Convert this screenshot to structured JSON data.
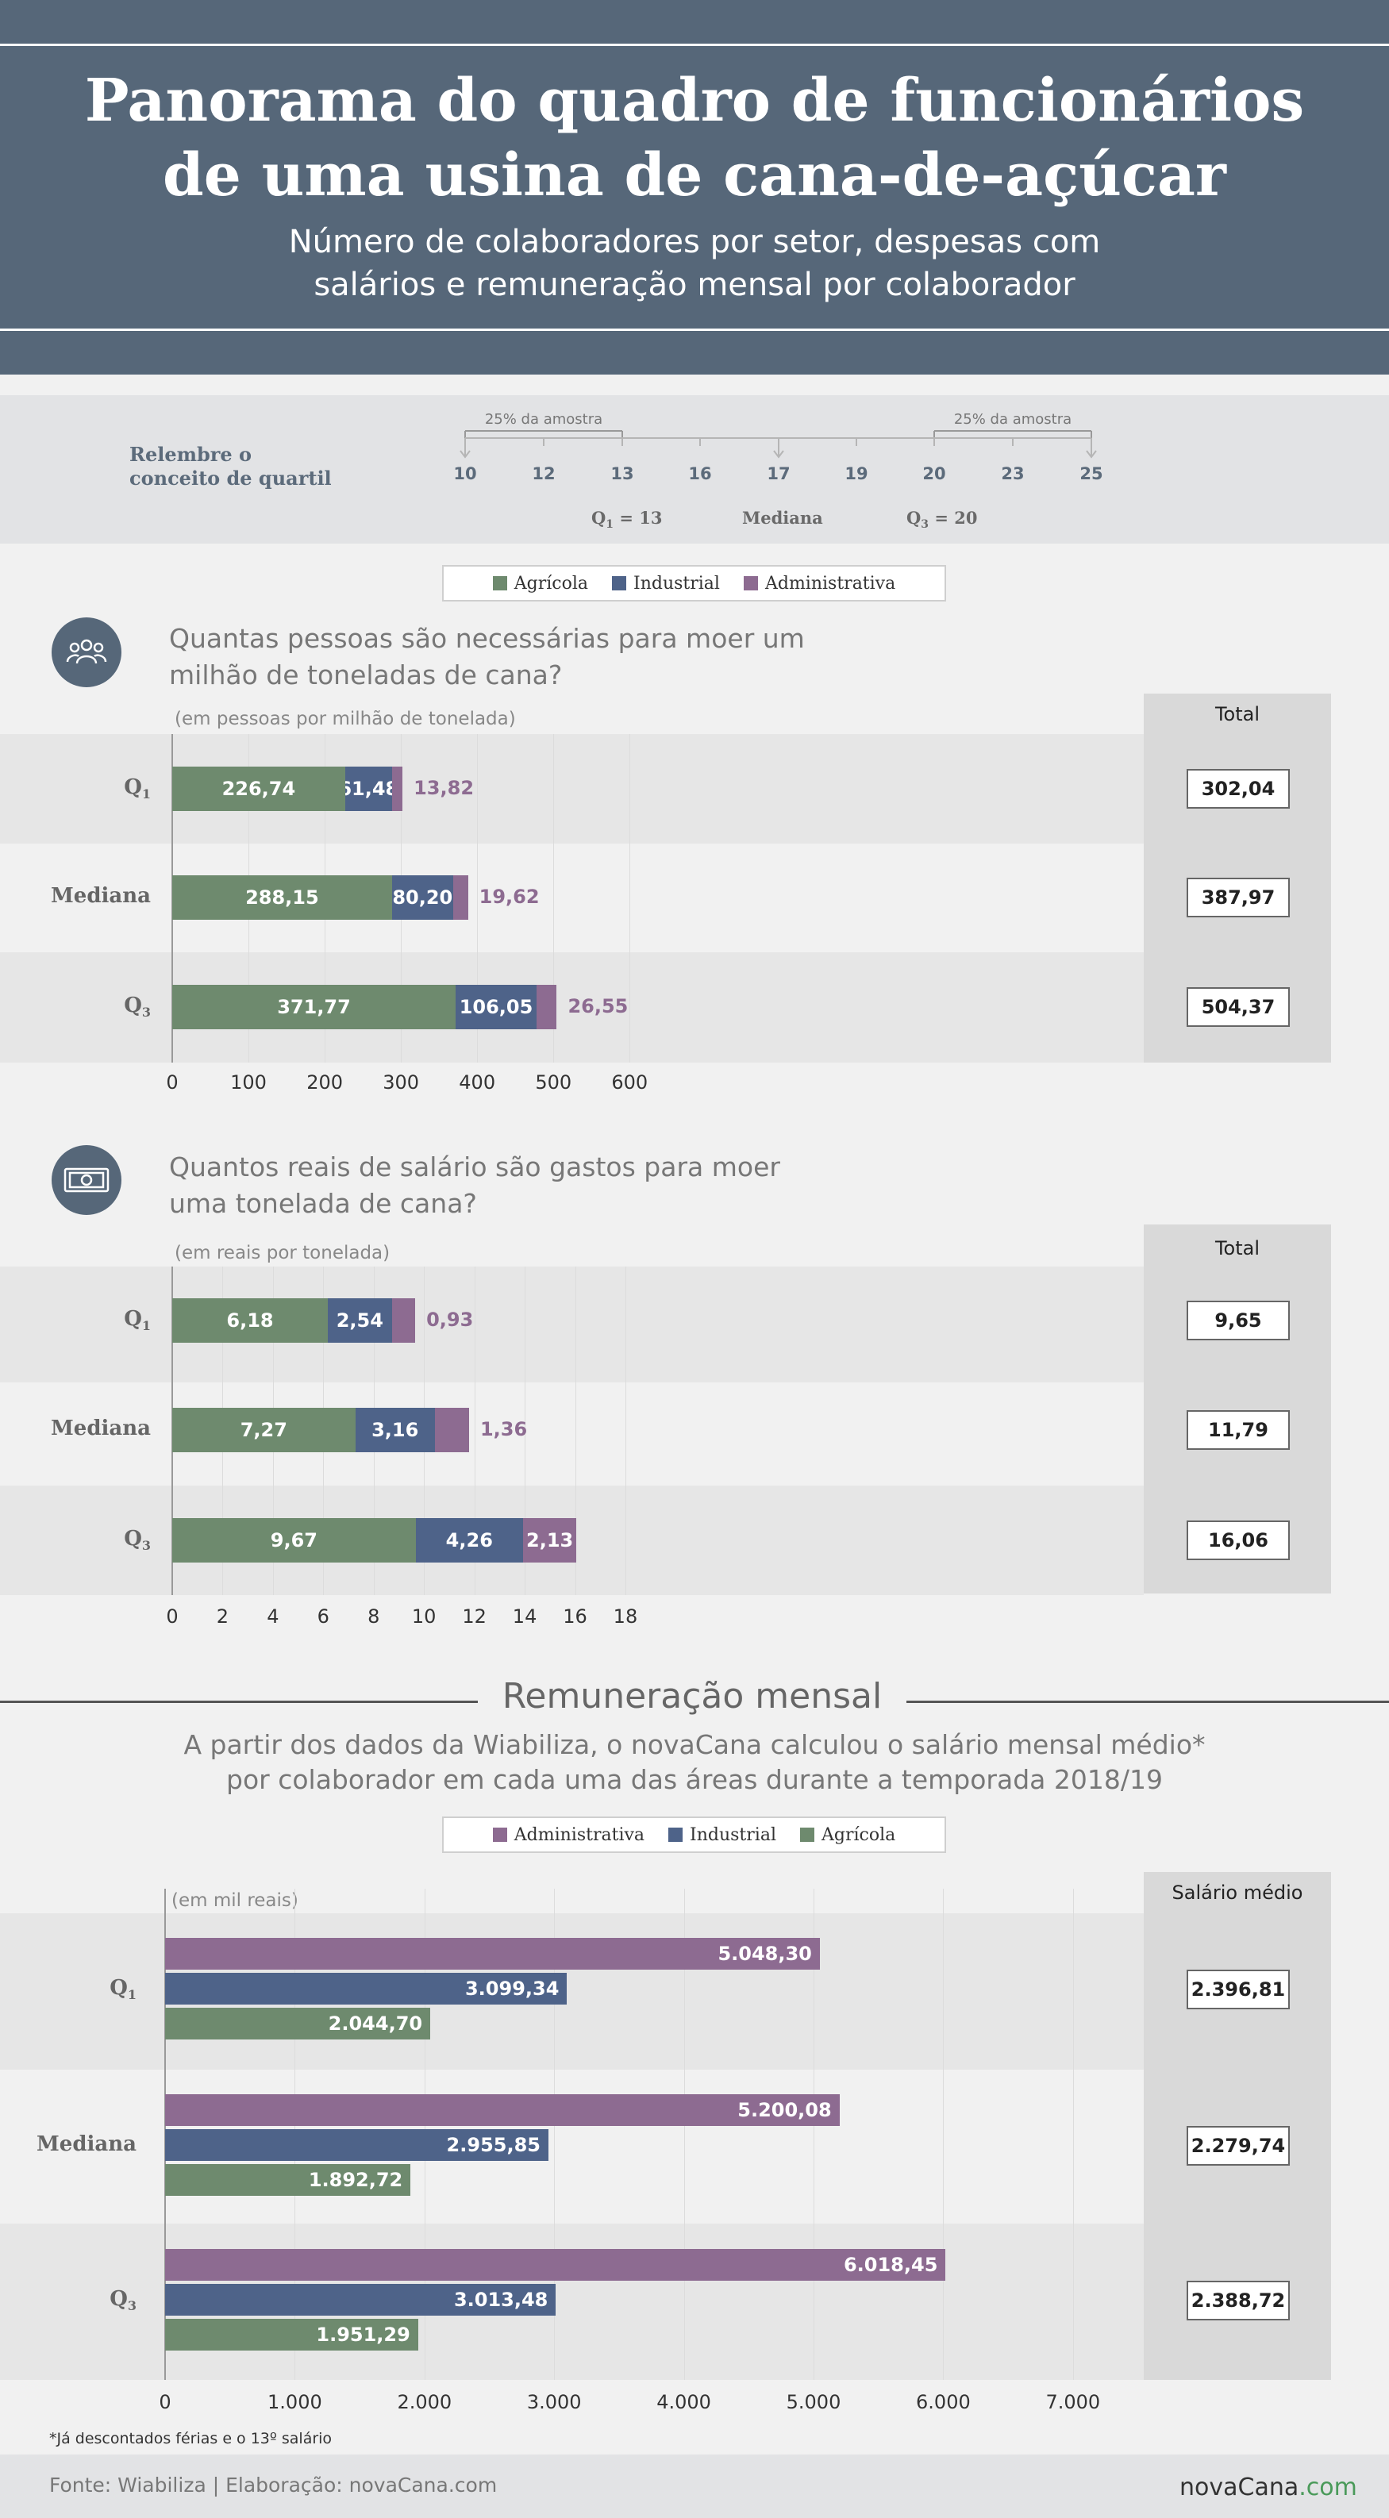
{
  "header": {
    "title_line1": "Panorama do quadro de funcionários",
    "title_line2": "de uma usina de cana-de-açúcar",
    "subtitle_line1": "Número de colaboradores por setor, despesas com",
    "subtitle_line2": "salários e remuneração mensal por colaborador"
  },
  "quartile_explainer": {
    "label_line1": "Relembre o",
    "label_line2": "conceito de quartil",
    "numbers": [
      "10",
      "12",
      "13",
      "16",
      "17",
      "19",
      "20",
      "23",
      "25"
    ],
    "bracket_left": "25% da amostra",
    "bracket_right": "25% da amostra",
    "q1_label": "Q",
    "q1_sub": "1",
    "q1_value": " = 13",
    "median_label": "Mediana",
    "q3_label": "Q",
    "q3_sub": "3",
    "q3_value": " = 20"
  },
  "legend_top": {
    "items": [
      {
        "label": "Agrícola",
        "color": "#6e8a6e"
      },
      {
        "label": "Industrial",
        "color": "#4e6389"
      },
      {
        "label": "Administrativa",
        "color": "#8d6b91"
      }
    ]
  },
  "colors": {
    "agricola": "#6e8a6e",
    "industrial": "#4e6389",
    "administrativa": "#8d6b91",
    "header_bg": "#566779"
  },
  "section1": {
    "title_line1": "Quantas pessoas são necessárias para moer um",
    "title_line2": "milhão de toneladas de cana?",
    "unit": "(em pessoas por milhão de tonelada)",
    "total_header": "Total",
    "icon": "people-icon"
  },
  "section2": {
    "title_line1": "Quantos reais de salário são gastos para moer",
    "title_line2": "uma tonelada de cana?",
    "unit": "(em reais por tonelada)",
    "total_header": "Total",
    "icon": "money-icon"
  },
  "section3": {
    "title": "Remuneração mensal",
    "desc_line1": "A partir dos dados da Wiabiliza, o novaCana calculou o salário mensal médio*",
    "desc_line2": "por colaborador em cada uma das áreas durante a temporada 2018/19",
    "unit": "(em mil reais)",
    "total_header": "Salário médio",
    "footnote": "*Já descontados férias e o 13º salário"
  },
  "legend_bottom": {
    "items": [
      {
        "label": "Administrativa",
        "color": "#8d6b91"
      },
      {
        "label": "Industrial",
        "color": "#4e6389"
      },
      {
        "label": "Agrícola",
        "color": "#6e8a6e"
      }
    ]
  },
  "chart_data": [
    {
      "type": "bar",
      "stacked": true,
      "orientation": "horizontal",
      "title": "Quantas pessoas são necessárias para moer um milhão de toneladas de cana?",
      "unit": "(em pessoas por milhão de tonelada)",
      "categories": [
        "Q1",
        "Mediana",
        "Q3"
      ],
      "series": [
        {
          "name": "Agrícola",
          "values": [
            226.74,
            288.15,
            371.77
          ],
          "labels": [
            "226,74",
            "288,15",
            "371,77"
          ]
        },
        {
          "name": "Industrial",
          "values": [
            61.48,
            80.2,
            106.05
          ],
          "labels": [
            "61,48",
            "80,20",
            "106,05"
          ]
        },
        {
          "name": "Administrativa",
          "values": [
            13.82,
            19.62,
            26.55
          ],
          "labels": [
            "13,82",
            "19,62",
            "26,55"
          ]
        }
      ],
      "totals": [
        "302,04",
        "387,97",
        "504,37"
      ],
      "xlim": [
        0,
        600
      ],
      "ticks": [
        "0",
        "100",
        "200",
        "300",
        "400",
        "500",
        "600"
      ],
      "tick_values": [
        0,
        100,
        200,
        300,
        400,
        500,
        600
      ]
    },
    {
      "type": "bar",
      "stacked": true,
      "orientation": "horizontal",
      "title": "Quantos reais de salário são gastos para moer uma tonelada de cana?",
      "unit": "(em reais por tonelada)",
      "categories": [
        "Q1",
        "Mediana",
        "Q3"
      ],
      "series": [
        {
          "name": "Agrícola",
          "values": [
            6.18,
            7.27,
            9.67
          ],
          "labels": [
            "6,18",
            "7,27",
            "9,67"
          ]
        },
        {
          "name": "Industrial",
          "values": [
            2.54,
            3.16,
            4.26
          ],
          "labels": [
            "2,54",
            "3,16",
            "4,26"
          ]
        },
        {
          "name": "Administrativa",
          "values": [
            0.93,
            1.36,
            2.13
          ],
          "labels": [
            "0,93",
            "1,36",
            "2,13"
          ]
        }
      ],
      "totals": [
        "9,65",
        "11,79",
        "16,06"
      ],
      "xlim": [
        0,
        18
      ],
      "ticks": [
        "0",
        "2",
        "4",
        "6",
        "8",
        "10",
        "12",
        "14",
        "16",
        "18"
      ],
      "tick_values": [
        0,
        2,
        4,
        6,
        8,
        10,
        12,
        14,
        16,
        18
      ]
    },
    {
      "type": "bar",
      "stacked": false,
      "orientation": "horizontal",
      "title": "Remuneração mensal",
      "unit": "(em mil reais)",
      "categories": [
        "Q1",
        "Mediana",
        "Q3"
      ],
      "series": [
        {
          "name": "Administrativa",
          "values": [
            5048.3,
            5200.08,
            6018.45
          ],
          "labels": [
            "5.048,30",
            "5.200,08",
            "6.018,45"
          ]
        },
        {
          "name": "Industrial",
          "values": [
            3099.34,
            2955.85,
            3013.48
          ],
          "labels": [
            "3.099,34",
            "2.955,85",
            "3.013,48"
          ]
        },
        {
          "name": "Agrícola",
          "values": [
            2044.7,
            1892.72,
            1951.29
          ],
          "labels": [
            "2.044,70",
            "1.892,72",
            "1.951,29"
          ]
        }
      ],
      "totals": [
        "2.396,81",
        "2.279,74",
        "2.388,72"
      ],
      "xlim": [
        0,
        7000
      ],
      "ticks": [
        "0",
        "1.000",
        "2.000",
        "3.000",
        "4.000",
        "5.000",
        "6.000",
        "7.000"
      ],
      "tick_values": [
        0,
        1000,
        2000,
        3000,
        4000,
        5000,
        6000,
        7000
      ]
    }
  ],
  "footer": {
    "source": "Fonte: Wiabiliza | Elaboração: novaCana.com",
    "brand_main": "novaCana",
    "brand_suffix": ".com"
  }
}
